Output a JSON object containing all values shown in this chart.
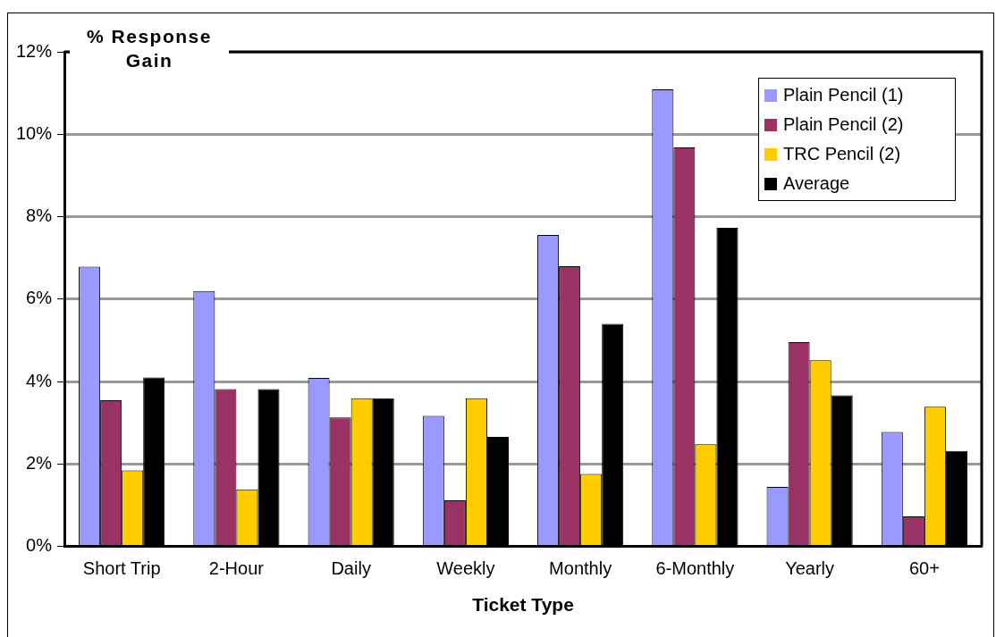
{
  "chart_data": {
    "type": "bar",
    "ylabel": "% Response Gain",
    "xlabel": "Ticket Type",
    "categories": [
      "Short Trip",
      "2-Hour",
      "Daily",
      "Weekly",
      "Monthly",
      "6-Monthly",
      "Yearly",
      "60+"
    ],
    "series": [
      {
        "name": "Plain Pencil (1)",
        "color": "#9999ff",
        "values": [
          6.79,
          6.2,
          4.09,
          3.17,
          7.56,
          11.09,
          1.45,
          2.78
        ]
      },
      {
        "name": "Plain Pencil (2)",
        "color": "#993366",
        "values": [
          3.55,
          3.82,
          3.13,
          1.12,
          6.8,
          9.68,
          4.96,
          0.73
        ]
      },
      {
        "name": "TRC Pencil (2)",
        "color": "#ffcc00",
        "values": [
          1.85,
          1.39,
          3.6,
          3.6,
          1.76,
          2.48,
          4.52,
          3.39
        ]
      },
      {
        "name": "Average",
        "color": "#000000",
        "values": [
          4.1,
          3.82,
          3.6,
          2.66,
          5.4,
          7.73,
          3.67,
          2.32
        ]
      }
    ],
    "ylim": [
      0,
      12
    ],
    "yticks": [
      {
        "value": 0,
        "label": "0%"
      },
      {
        "value": 2,
        "label": "2%"
      },
      {
        "value": 4,
        "label": "4%"
      },
      {
        "value": 6,
        "label": "6%"
      },
      {
        "value": 8,
        "label": "8%"
      },
      {
        "value": 10,
        "label": "10%"
      },
      {
        "value": 12,
        "label": "12%"
      }
    ],
    "grid": "y",
    "legend": "top right"
  }
}
